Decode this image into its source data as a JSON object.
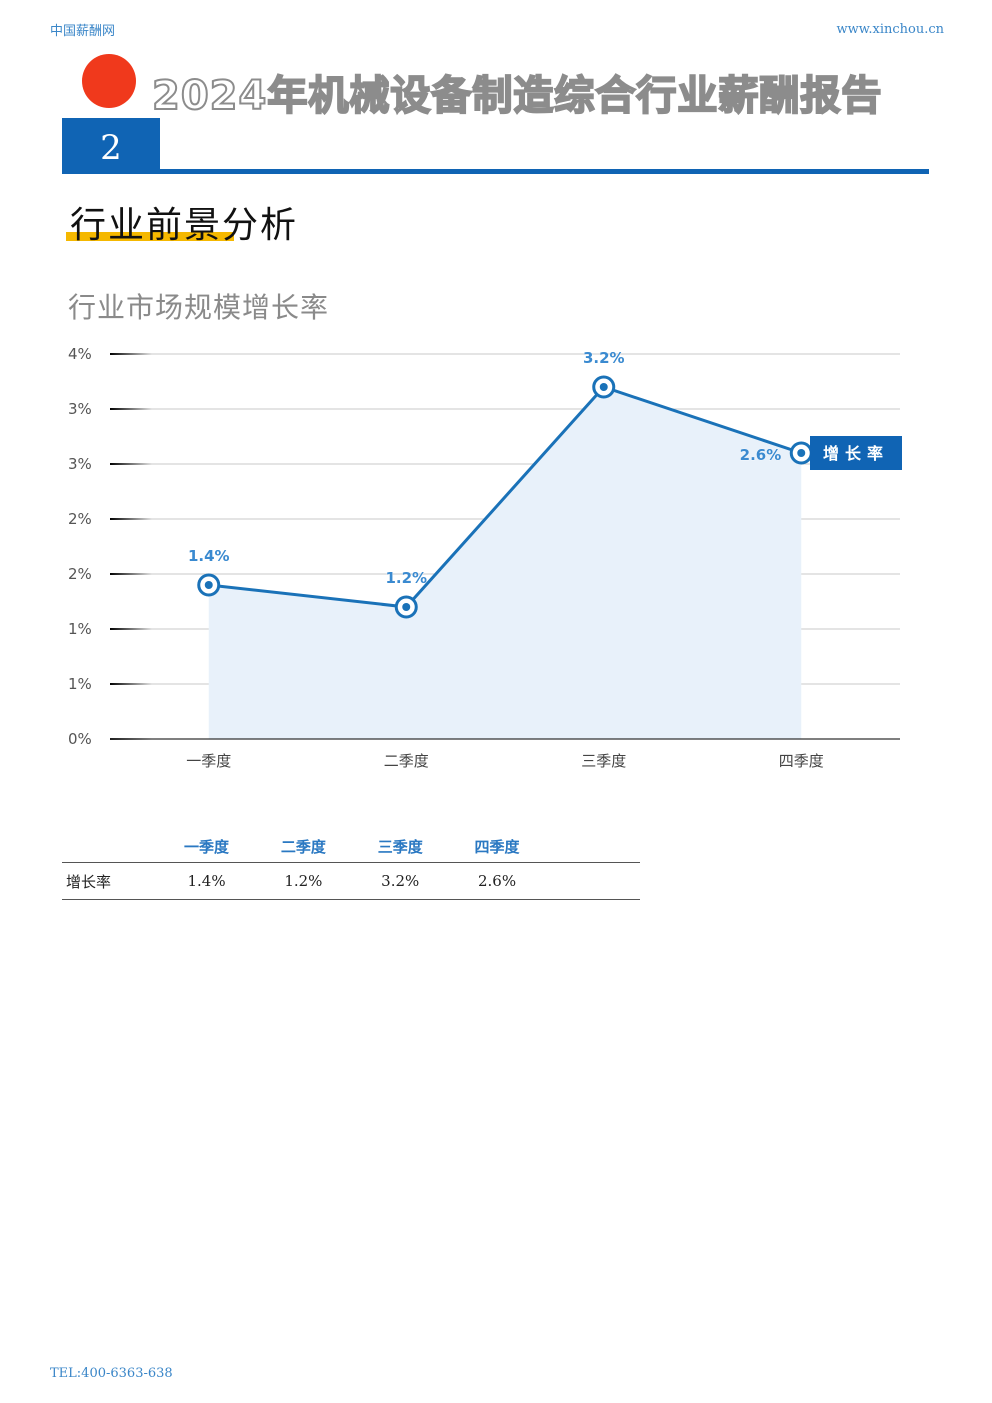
{
  "header": {
    "brand": "中国薪酬网",
    "site": "www.xinchou.cn",
    "report_title": "2024年机械设备制造综合行业薪酬报告",
    "section_number": "2",
    "section_title": "行业前景分析"
  },
  "chart_title": "行业市场规模增长率",
  "chart_data": {
    "type": "area",
    "categories": [
      "一季度",
      "二季度",
      "三季度",
      "四季度"
    ],
    "series": [
      {
        "name": "增长率",
        "values": [
          1.4,
          1.2,
          3.2,
          2.6
        ],
        "labels": [
          "1.4%",
          "1.2%",
          "3.2%",
          "2.6%"
        ]
      }
    ],
    "y_ticks": [
      "0%",
      "1%",
      "1%",
      "2%",
      "2%",
      "3%",
      "3%",
      "4%"
    ],
    "ylim": [
      0,
      3.5
    ],
    "grid": true,
    "legend": "right of last point"
  },
  "table": {
    "headers": [
      "一季度",
      "二季度",
      "三季度",
      "四季度"
    ],
    "rows": [
      {
        "label": "增长率",
        "values": [
          "1.4%",
          "1.2%",
          "3.2%",
          "2.6%"
        ]
      }
    ]
  },
  "footer": {
    "tel": "TEL:400-6363-638"
  },
  "colors": {
    "accent": "#1064b4",
    "line": "#1a72b8",
    "dot": "#f0391c",
    "highlight": "#f5b800",
    "fill": "#e8f1fa"
  }
}
